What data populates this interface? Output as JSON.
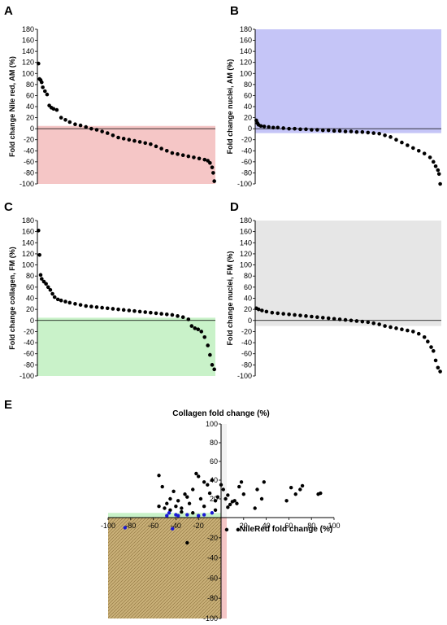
{
  "chart_data": [
    {
      "panel": "A",
      "type": "scatter",
      "ylabel": "Fold change Nile red, AM (%)",
      "ylim": [
        -100,
        180
      ],
      "yticks": [
        180,
        160,
        140,
        120,
        100,
        80,
        60,
        40,
        20,
        0,
        -20,
        -40,
        -60,
        -80,
        -100
      ],
      "zero_line": true,
      "shaded_region": {
        "y0": -100,
        "y1": 5,
        "color": "#f5c6c6"
      },
      "x": [
        1,
        2,
        3,
        4,
        5,
        7,
        9,
        11,
        13,
        15,
        18,
        22,
        26,
        30,
        35,
        40,
        45,
        50,
        55,
        60,
        65,
        70,
        75,
        80,
        85,
        90,
        95,
        100,
        105,
        110,
        115,
        120,
        125,
        130,
        135,
        140,
        145,
        150,
        155,
        158,
        160,
        162,
        163,
        164
      ],
      "y": [
        118,
        90,
        88,
        84,
        75,
        68,
        62,
        42,
        38,
        36,
        34,
        20,
        16,
        12,
        8,
        6,
        3,
        0,
        -2,
        -5,
        -8,
        -12,
        -16,
        -18,
        -20,
        -22,
        -24,
        -26,
        -28,
        -32,
        -36,
        -40,
        -44,
        -46,
        -48,
        -50,
        -52,
        -54,
        -56,
        -58,
        -62,
        -70,
        -80,
        -95
      ]
    },
    {
      "panel": "B",
      "type": "scatter",
      "ylabel": "Fold change nuclei, AM (%)",
      "ylim": [
        -100,
        180
      ],
      "yticks": [
        180,
        160,
        140,
        120,
        100,
        80,
        60,
        40,
        20,
        0,
        -20,
        -40,
        -60,
        -80,
        -100
      ],
      "zero_line": true,
      "shaded_region": {
        "y0": -8,
        "y1": 180,
        "color": "#c5c5f7"
      },
      "x": [
        1,
        2,
        3,
        5,
        8,
        12,
        16,
        20,
        25,
        30,
        35,
        40,
        45,
        50,
        55,
        60,
        65,
        70,
        75,
        80,
        85,
        90,
        95,
        100,
        105,
        110,
        115,
        120,
        125,
        130,
        135,
        140,
        145,
        150,
        155,
        158,
        160,
        162,
        163,
        164
      ],
      "y": [
        15,
        10,
        7,
        5,
        4,
        3,
        2,
        2,
        1,
        0,
        0,
        -1,
        -1,
        -2,
        -2,
        -3,
        -3,
        -4,
        -4,
        -5,
        -5,
        -6,
        -6,
        -7,
        -8,
        -9,
        -12,
        -15,
        -20,
        -25,
        -30,
        -35,
        -40,
        -45,
        -52,
        -60,
        -68,
        -75,
        -82,
        -100
      ]
    },
    {
      "panel": "C",
      "type": "scatter",
      "ylabel": "Fold change collagen, FM (%)",
      "ylim": [
        -100,
        180
      ],
      "yticks": [
        180,
        160,
        140,
        120,
        100,
        80,
        60,
        40,
        20,
        0,
        -20,
        -40,
        -60,
        -80,
        -100
      ],
      "zero_line": true,
      "shaded_region": {
        "y0": -100,
        "y1": 5,
        "color": "#c9f2c9"
      },
      "x": [
        1,
        2,
        3,
        4,
        6,
        8,
        10,
        12,
        14,
        16,
        19,
        22,
        26,
        30,
        35,
        40,
        45,
        50,
        55,
        60,
        65,
        70,
        75,
        80,
        85,
        90,
        95,
        100,
        105,
        110,
        115,
        120,
        125,
        130,
        135,
        140,
        143,
        146,
        149,
        152,
        155,
        158,
        160,
        162,
        164
      ],
      "y": [
        162,
        118,
        82,
        75,
        70,
        66,
        60,
        55,
        48,
        42,
        38,
        36,
        34,
        32,
        30,
        28,
        26,
        25,
        24,
        23,
        22,
        21,
        20,
        19,
        18,
        17,
        16,
        15,
        14,
        13,
        12,
        11,
        10,
        8,
        6,
        2,
        -10,
        -14,
        -16,
        -20,
        -30,
        -45,
        -62,
        -80,
        -88
      ]
    },
    {
      "panel": "D",
      "type": "scatter",
      "ylabel": "Fold change nuclei, FM (%)",
      "ylim": [
        -100,
        180
      ],
      "yticks": [
        180,
        160,
        140,
        120,
        100,
        80,
        60,
        40,
        20,
        0,
        -20,
        -40,
        -60,
        -80,
        -100
      ],
      "zero_line": true,
      "shaded_region": {
        "y0": -10,
        "y1": 180,
        "color": "#e6e6e6"
      },
      "x": [
        1,
        3,
        6,
        10,
        15,
        20,
        25,
        30,
        35,
        40,
        45,
        50,
        55,
        60,
        65,
        70,
        75,
        80,
        85,
        90,
        95,
        100,
        105,
        110,
        115,
        120,
        125,
        130,
        135,
        140,
        145,
        150,
        153,
        156,
        158,
        160,
        162,
        164
      ],
      "y": [
        22,
        20,
        18,
        16,
        14,
        13,
        12,
        11,
        10,
        9,
        8,
        7,
        6,
        5,
        4,
        3,
        2,
        1,
        0,
        -1,
        -2,
        -3,
        -5,
        -7,
        -10,
        -12,
        -14,
        -16,
        -18,
        -20,
        -24,
        -30,
        -38,
        -48,
        -55,
        -72,
        -85,
        -92
      ]
    },
    {
      "panel": "E",
      "type": "scatter",
      "title": "Collagen fold change (%)",
      "xlabel": "NileRed fold change (%)",
      "xlim": [
        -100,
        100
      ],
      "ylim": [
        -100,
        100
      ],
      "xticks": [
        -100,
        -80,
        -60,
        -40,
        -20,
        20,
        40,
        60,
        80,
        100
      ],
      "yticks": [
        100,
        80,
        60,
        40,
        20,
        -20,
        -40,
        -60,
        -80,
        -100
      ],
      "regions": [
        {
          "x0": -100,
          "x1": 5,
          "y0": 0,
          "y1": 5,
          "color": "#c9f2c9"
        },
        {
          "x0": -100,
          "x1": 0,
          "y0": -100,
          "y1": 0,
          "color": "#c9b078",
          "hatch": true
        },
        {
          "x0": 0,
          "x1": 5,
          "y0": -100,
          "y1": 0,
          "color": "#f5c6c6"
        },
        {
          "x0": 0,
          "x1": 5,
          "y0": 0,
          "y1": 100,
          "color": "#f2f2f2"
        }
      ],
      "series": [
        {
          "color": "#000000",
          "points": [
            [
              -55,
              45
            ],
            [
              -52,
              33
            ],
            [
              -55,
              12
            ],
            [
              -50,
              10
            ],
            [
              -48,
              15
            ],
            [
              -45,
              20
            ],
            [
              -42,
              28
            ],
            [
              -40,
              12
            ],
            [
              -38,
              18
            ],
            [
              -35,
              10
            ],
            [
              -32,
              25
            ],
            [
              -30,
              22
            ],
            [
              -28,
              15
            ],
            [
              -25,
              30
            ],
            [
              -22,
              47
            ],
            [
              -20,
              44
            ],
            [
              -18,
              20
            ],
            [
              -15,
              38
            ],
            [
              -12,
              35
            ],
            [
              -10,
              26
            ],
            [
              -8,
              40
            ],
            [
              -5,
              18
            ],
            [
              -3,
              22
            ],
            [
              0,
              35
            ],
            [
              2,
              30
            ],
            [
              4,
              20
            ],
            [
              6,
              24
            ],
            [
              8,
              14
            ],
            [
              10,
              17
            ],
            [
              12,
              18
            ],
            [
              14,
              15
            ],
            [
              16,
              33
            ],
            [
              18,
              38
            ],
            [
              20,
              25
            ],
            [
              -45,
              8
            ],
            [
              -35,
              6
            ],
            [
              -25,
              5
            ],
            [
              -15,
              12
            ],
            [
              -5,
              8
            ],
            [
              6,
              11
            ],
            [
              30,
              10
            ],
            [
              32,
              30
            ],
            [
              36,
              20
            ],
            [
              38,
              38
            ],
            [
              58,
              18
            ],
            [
              62,
              32
            ],
            [
              66,
              25
            ],
            [
              70,
              30
            ],
            [
              72,
              34
            ],
            [
              86,
              25
            ],
            [
              88,
              26
            ],
            [
              -30,
              -25
            ],
            [
              5,
              -12
            ],
            [
              15,
              -12
            ]
          ]
        },
        {
          "color": "#1a1ad6",
          "points": [
            [
              -85,
              -10
            ],
            [
              -48,
              2
            ],
            [
              -46,
              5
            ],
            [
              -43,
              -11
            ],
            [
              -40,
              3
            ],
            [
              -38,
              2
            ],
            [
              -30,
              3
            ],
            [
              -20,
              2
            ],
            [
              -15,
              3
            ],
            [
              -8,
              5
            ]
          ]
        }
      ]
    }
  ],
  "panels": {
    "A": "A",
    "B": "B",
    "C": "C",
    "D": "D",
    "E": "E"
  }
}
